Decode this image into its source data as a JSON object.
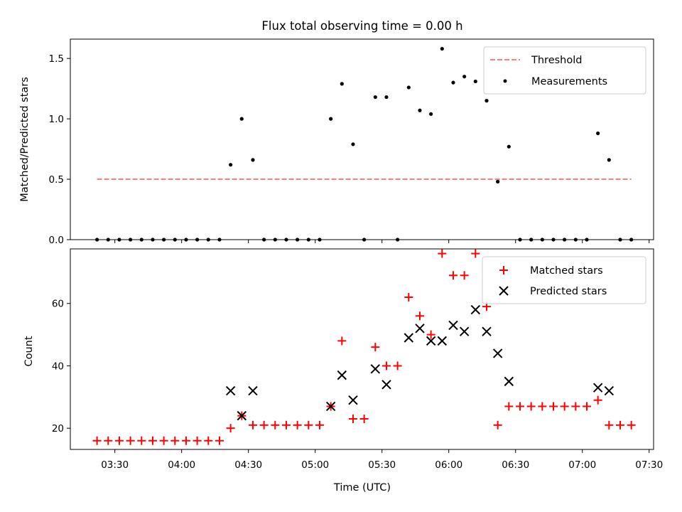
{
  "chart_data": [
    {
      "type": "scatter",
      "title": "Flux total observing time = 0.00 h",
      "xlabel": "",
      "ylabel": "Matched/Predicted stars",
      "ylim": [
        0,
        1.66
      ],
      "yticks": [
        0.0,
        0.5,
        1.0,
        1.5
      ],
      "ytick_labels": [
        "0.0",
        "0.5",
        "1.0",
        "1.5"
      ],
      "legend_position": "top-right",
      "threshold": {
        "name": "Threshold",
        "value": 0.5,
        "x_start": "03:22",
        "x_end": "07:22",
        "color": "#ff7f7f",
        "style": "dashed"
      },
      "series": [
        {
          "name": "Measurements",
          "color": "#000000",
          "marker": "dot",
          "x": [
            "03:22",
            "03:27",
            "03:32",
            "03:37",
            "03:42",
            "03:47",
            "03:52",
            "03:57",
            "04:02",
            "04:07",
            "04:12",
            "04:17",
            "04:22",
            "04:27",
            "04:32",
            "04:37",
            "04:42",
            "04:47",
            "04:52",
            "04:57",
            "05:02",
            "05:07",
            "05:12",
            "05:17",
            "05:22",
            "05:27",
            "05:32",
            "05:37",
            "05:42",
            "05:47",
            "05:52",
            "05:57",
            "06:02",
            "06:07",
            "06:12",
            "06:17",
            "06:22",
            "06:27",
            "06:32",
            "06:37",
            "06:42",
            "06:47",
            "06:52",
            "06:57",
            "07:02",
            "07:07",
            "07:12",
            "07:17",
            "07:22"
          ],
          "y": [
            0,
            0,
            0,
            0,
            0,
            0,
            0,
            0,
            0,
            0,
            0,
            0,
            0.62,
            1.0,
            0.66,
            0,
            0,
            0,
            0,
            0,
            0,
            1.0,
            1.29,
            0.79,
            0,
            1.18,
            1.18,
            0,
            1.26,
            1.07,
            1.04,
            1.58,
            1.3,
            1.35,
            1.31,
            1.15,
            0.48,
            0.77,
            0,
            0,
            0,
            0,
            0,
            0,
            0,
            0.88,
            0.66,
            0,
            0
          ]
        }
      ]
    },
    {
      "type": "scatter",
      "title": "",
      "xlabel": "Time (UTC)",
      "ylabel": "Count",
      "ylim": [
        13.2,
        77.5
      ],
      "yticks": [
        20,
        40,
        60
      ],
      "ytick_labels": [
        "20",
        "40",
        "60"
      ],
      "xlim": [
        "03:10",
        "07:32"
      ],
      "xticks": [
        "03:30",
        "04:00",
        "04:30",
        "05:00",
        "05:30",
        "06:00",
        "06:30",
        "07:00",
        "07:30"
      ],
      "legend_position": "top-right",
      "series": [
        {
          "name": "Matched stars",
          "color": "#ff0000",
          "marker": "plus",
          "x": [
            "03:22",
            "03:27",
            "03:32",
            "03:37",
            "03:42",
            "03:47",
            "03:52",
            "03:57",
            "04:02",
            "04:07",
            "04:12",
            "04:17",
            "04:22",
            "04:27",
            "04:32",
            "04:37",
            "04:42",
            "04:47",
            "04:52",
            "04:57",
            "05:02",
            "05:07",
            "05:12",
            "05:17",
            "05:22",
            "05:27",
            "05:32",
            "05:37",
            "05:42",
            "05:47",
            "05:52",
            "05:57",
            "06:02",
            "06:07",
            "06:12",
            "06:17",
            "06:22",
            "06:27",
            "06:32",
            "06:37",
            "06:42",
            "06:47",
            "06:52",
            "06:57",
            "07:02",
            "07:07",
            "07:12",
            "07:17",
            "07:22"
          ],
          "y": [
            16,
            16,
            16,
            16,
            16,
            16,
            16,
            16,
            16,
            16,
            16,
            16,
            20,
            24,
            21,
            21,
            21,
            21,
            21,
            21,
            21,
            27,
            48,
            23,
            23,
            46,
            40,
            40,
            62,
            56,
            50,
            76,
            69,
            69,
            76,
            59,
            21,
            27,
            27,
            27,
            27,
            27,
            27,
            27,
            27,
            29,
            21,
            21,
            21
          ]
        },
        {
          "name": "Predicted stars",
          "color": "#000000",
          "marker": "x",
          "x": [
            "04:22",
            "04:27",
            "04:32",
            "05:07",
            "05:12",
            "05:17",
            "05:27",
            "05:32",
            "05:42",
            "05:47",
            "05:52",
            "05:57",
            "06:02",
            "06:07",
            "06:12",
            "06:17",
            "06:22",
            "06:27",
            "07:07",
            "07:12"
          ],
          "y": [
            32,
            24,
            32,
            27,
            37,
            29,
            39,
            34,
            49,
            52,
            48,
            48,
            53,
            51,
            58,
            51,
            44,
            35,
            33,
            32
          ]
        }
      ]
    }
  ]
}
